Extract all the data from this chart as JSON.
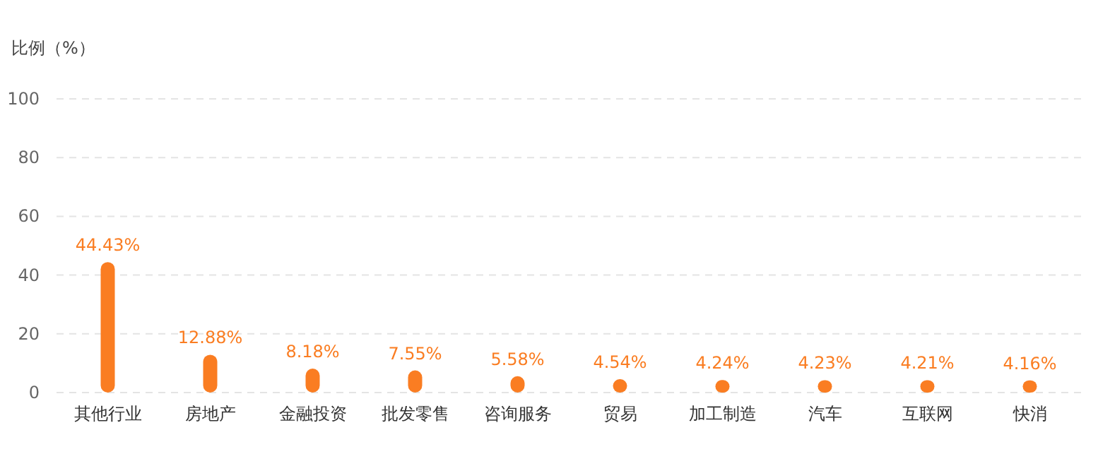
{
  "chart_data": {
    "type": "bar",
    "ylabel": "比例（%）",
    "categories": [
      "其他行业",
      "房地产",
      "金融投资",
      "批发零售",
      "咨询服务",
      "贸易",
      "加工制造",
      "汽车",
      "互联网",
      "快消"
    ],
    "values": [
      44.43,
      12.88,
      8.18,
      7.55,
      5.58,
      4.54,
      4.24,
      4.23,
      4.21,
      4.16
    ],
    "value_labels": [
      "44.43%",
      "12.88%",
      "8.18%",
      "7.55%",
      "5.58%",
      "4.54%",
      "4.24%",
      "4.23%",
      "4.21%",
      "4.16%"
    ],
    "color": "#fa7d22",
    "ylim": [
      0,
      100
    ],
    "yticks": [
      0,
      20,
      40,
      60,
      80,
      100
    ],
    "grid": "y",
    "legend": false
  }
}
